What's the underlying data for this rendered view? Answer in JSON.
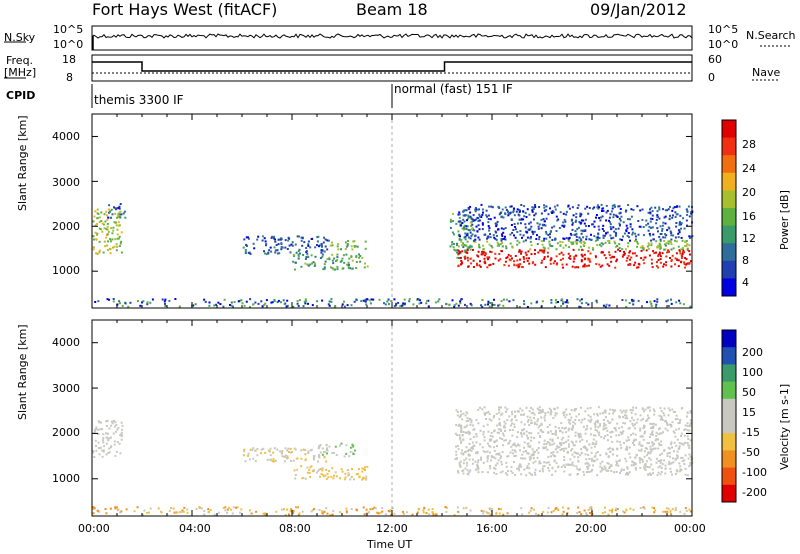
{
  "header": {
    "station": "Fort Hays West (fitACF)",
    "beam": "Beam 18",
    "date": "09/Jan/2012"
  },
  "top_panels": {
    "nsky_label": "N.Sky",
    "nsky_ticks": [
      "10^5",
      "10^0"
    ],
    "nsearch_label": "N.Search",
    "nsearch_ticks": [
      "10^5",
      "10^0"
    ],
    "freq_label_line1": "Freq.",
    "freq_label_line2": "[MHz]",
    "freq_ticks": [
      "18",
      "8"
    ],
    "nave_label": "Nave",
    "nave_ticks": [
      "60",
      "0"
    ],
    "cpid_label": "CPID",
    "cpid_segments": [
      {
        "text": "themis 3300 IF",
        "start_hour": 0,
        "end_hour": 12
      },
      {
        "text": "normal (fast) 151 IF",
        "start_hour": 12,
        "end_hour": 24
      }
    ]
  },
  "chart_data": [
    {
      "type": "heatmap",
      "name": "power",
      "ylabel": "Slant Range [km]",
      "xlim": [
        0,
        24
      ],
      "ylim": [
        180,
        4500
      ],
      "yticks": [
        "1000",
        "2000",
        "3000",
        "4000"
      ],
      "colorbar_label": "Power [dB]",
      "colorbar_ticks": [
        "28",
        "24",
        "20",
        "16",
        "12",
        "8",
        "4"
      ],
      "colorbar_range": [
        0,
        30
      ],
      "colorscale": [
        "#0000e0",
        "#2040b0",
        "#2e6e9a",
        "#3a9a6a",
        "#60b040",
        "#a8c030",
        "#f0b020",
        "#f07010",
        "#f03010",
        "#e00000"
      ],
      "regions": [
        {
          "t0": 0.0,
          "t1": 1.2,
          "r0": 1400,
          "r1": 2400,
          "power": 16
        },
        {
          "t0": 0.6,
          "t1": 1.3,
          "r0": 2200,
          "r1": 2600,
          "power": 6
        },
        {
          "t0": 8.0,
          "t1": 11.0,
          "r0": 1050,
          "r1": 1400,
          "power": 12
        },
        {
          "t0": 9.5,
          "t1": 11.0,
          "r0": 1500,
          "r1": 1700,
          "power": 14
        },
        {
          "t0": 6.0,
          "t1": 9.5,
          "r0": 1400,
          "r1": 1800,
          "power": 6
        },
        {
          "t0": 14.3,
          "t1": 15.2,
          "r0": 1300,
          "r1": 2300,
          "power": 12
        },
        {
          "t0": 14.6,
          "t1": 24.0,
          "r0": 1100,
          "r1": 1500,
          "power": 28
        },
        {
          "t0": 14.6,
          "t1": 24.0,
          "r0": 1500,
          "r1": 1700,
          "power": 14
        },
        {
          "t0": 14.6,
          "t1": 24.0,
          "r0": 1700,
          "r1": 2500,
          "power": 5
        }
      ]
    },
    {
      "type": "heatmap",
      "name": "velocity",
      "ylabel": "Slant Range [km]",
      "xlabel": "Time UT",
      "xlim": [
        0,
        24
      ],
      "ylim": [
        180,
        4500
      ],
      "xticks": [
        "00:00",
        "04:00",
        "08:00",
        "12:00",
        "16:00",
        "20:00",
        "00:00"
      ],
      "yticks": [
        "1000",
        "2000",
        "3000",
        "4000"
      ],
      "colorbar_label": "Velocity [m s-1]",
      "colorbar_ticks": [
        "200",
        "100",
        "50",
        "15",
        "-15",
        "-50",
        "-100",
        "-200"
      ],
      "colorbar_range": [
        -250,
        250
      ],
      "colorscale": [
        "#e00000",
        "#f05010",
        "#f09020",
        "#f0c040",
        "#c8c8c0",
        "#c8c8c0",
        "#60c050",
        "#3a9a6a",
        "#2050b0",
        "#0000c0"
      ],
      "regions": [
        {
          "t0": 0.0,
          "t1": 1.2,
          "r0": 1500,
          "r1": 2300,
          "velocity": 0
        },
        {
          "t0": 8.0,
          "t1": 11.0,
          "r0": 1000,
          "r1": 1300,
          "velocity": -60
        },
        {
          "t0": 9.0,
          "t1": 10.5,
          "r0": 1500,
          "r1": 1800,
          "velocity": 40
        },
        {
          "t0": 6.0,
          "t1": 9.5,
          "r0": 1400,
          "r1": 1700,
          "velocity": -40
        },
        {
          "t0": 14.5,
          "t1": 24.0,
          "r0": 1100,
          "r1": 2000,
          "velocity": 0
        },
        {
          "t0": 14.5,
          "t1": 24.0,
          "r0": 2000,
          "r1": 2600,
          "velocity": 20
        }
      ]
    }
  ]
}
